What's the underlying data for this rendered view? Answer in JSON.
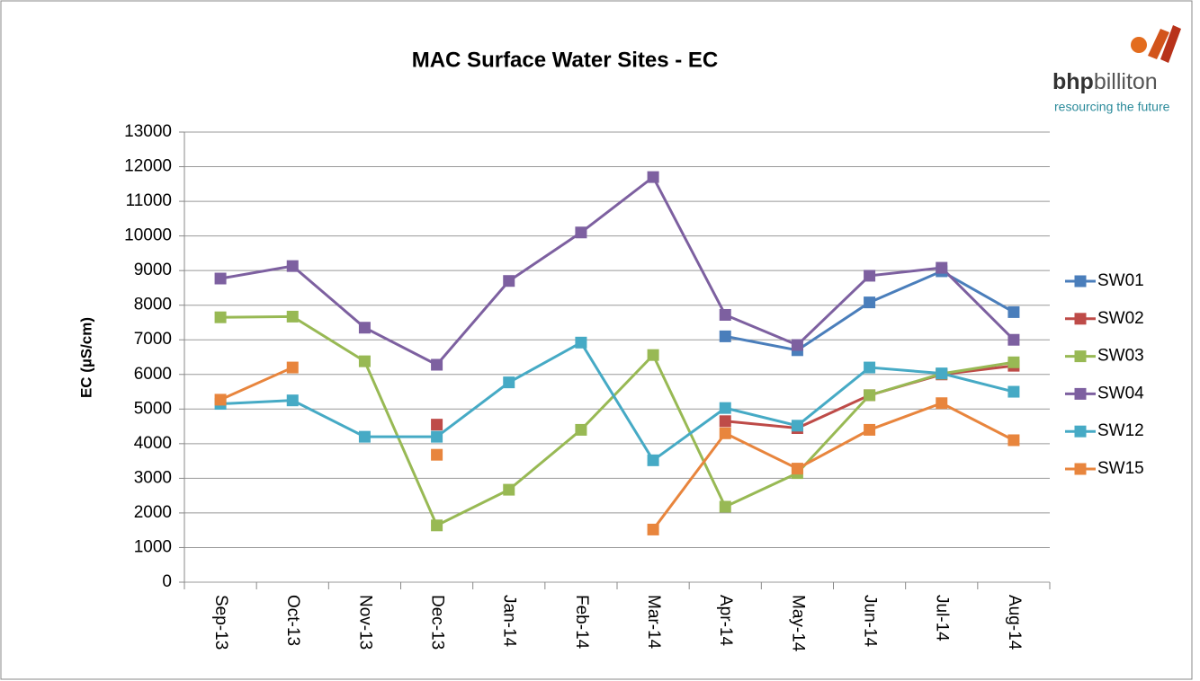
{
  "chart_data": {
    "type": "line",
    "title": "MAC Surface Water Sites - EC",
    "y_label": "EC (µS/cm)",
    "categories": [
      "Sep-13",
      "Oct-13",
      "Nov-13",
      "Dec-13",
      "Jan-14",
      "Feb-14",
      "Mar-14",
      "Apr-14",
      "May-14",
      "Jun-14",
      "Jul-14",
      "Aug-14"
    ],
    "series": [
      {
        "name": "SW01",
        "color": "#4a7ebb",
        "values": [
          null,
          null,
          null,
          null,
          null,
          null,
          null,
          7100,
          6700,
          8080,
          8980,
          7800
        ]
      },
      {
        "name": "SW02",
        "color": "#be4b48",
        "values": [
          null,
          null,
          null,
          4550,
          null,
          null,
          null,
          4650,
          4450,
          5400,
          6000,
          6250
        ]
      },
      {
        "name": "SW03",
        "color": "#98b954",
        "values": [
          7650,
          7670,
          6380,
          1640,
          2670,
          4400,
          6560,
          2180,
          3150,
          5400,
          6020,
          6350
        ]
      },
      {
        "name": "SW04",
        "color": "#7d60a0",
        "values": [
          8770,
          9130,
          7350,
          6280,
          8700,
          10100,
          11700,
          7720,
          6850,
          8850,
          9080,
          7000
        ]
      },
      {
        "name": "SW12",
        "color": "#46aac5",
        "values": [
          5150,
          5250,
          4200,
          4200,
          5770,
          6920,
          3520,
          5030,
          4520,
          6200,
          6030,
          5500
        ]
      },
      {
        "name": "SW15",
        "color": "#e8853d",
        "values": [
          5270,
          6200,
          null,
          3680,
          null,
          null,
          1520,
          4300,
          3280,
          4400,
          5170,
          4100
        ]
      }
    ],
    "ylim": [
      0,
      13000
    ],
    "yticks": [
      0,
      1000,
      2000,
      3000,
      4000,
      5000,
      6000,
      7000,
      8000,
      9000,
      10000,
      11000,
      12000,
      13000
    ],
    "grid": true,
    "legend": "right"
  },
  "logo": {
    "brand_bold": "bhp",
    "brand": "billiton",
    "tagline": "resourcing the future"
  }
}
